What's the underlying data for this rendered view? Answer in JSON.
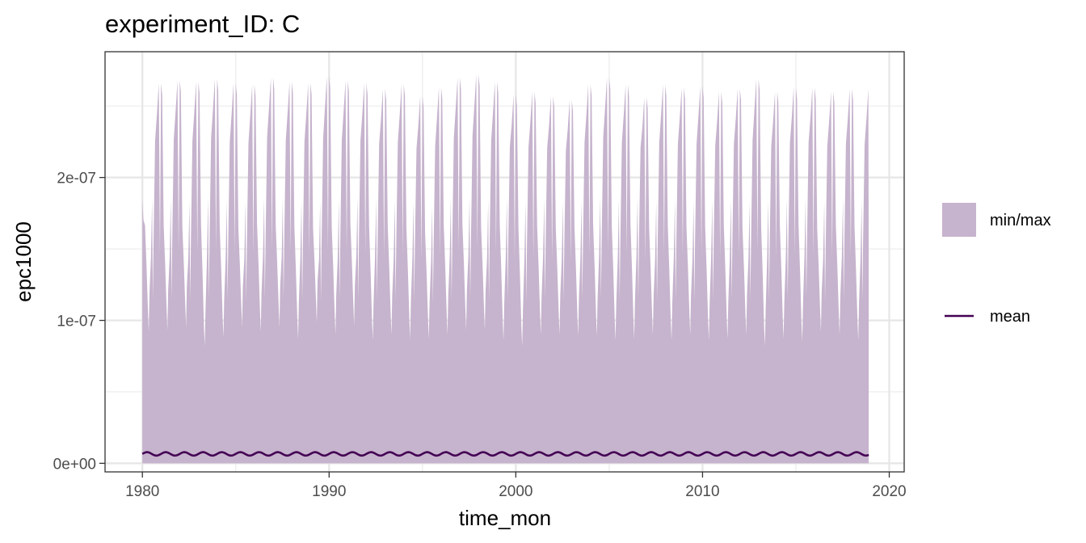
{
  "chart_data": {
    "type": "area",
    "title": "experiment_ID: C",
    "xlabel": "time_mon",
    "ylabel": "epc1000",
    "x_range": [
      1980.0,
      2018.9
    ],
    "xlim": [
      1978.0,
      2020.8
    ],
    "ylim": [
      -6e-09,
      2.88e-07
    ],
    "x_ticks": [
      1980,
      1990,
      2000,
      2010,
      2020
    ],
    "x_tick_labels": [
      "1980",
      "1990",
      "2000",
      "2010",
      "2020"
    ],
    "x_minor_ticks": [
      1985,
      1995,
      2005,
      2015
    ],
    "y_ticks": [
      0,
      1e-07,
      2e-07
    ],
    "y_tick_labels": [
      "0e+00",
      "1e-07",
      "2e-07"
    ],
    "y_minor_ticks": [
      5e-08,
      1.5e-07,
      2.5e-07
    ],
    "grid": true,
    "legend_position": "right",
    "series": [
      {
        "name": "min/max",
        "kind": "ribbon",
        "color": "#c6b3cd",
        "min_value": 0,
        "annual_peak_max": [
          2.65e-07,
          2.66e-07,
          2.68e-07,
          2.67e-07,
          2.69e-07,
          2.66e-07,
          2.65e-07,
          2.7e-07,
          2.67e-07,
          2.66e-07,
          2.71e-07,
          2.68e-07,
          2.66e-07,
          2.62e-07,
          2.65e-07,
          2.57e-07,
          2.63e-07,
          2.7e-07,
          2.72e-07,
          2.67e-07,
          2.58e-07,
          2.6e-07,
          2.57e-07,
          2.54e-07,
          2.65e-07,
          2.7e-07,
          2.65e-07,
          2.56e-07,
          2.65e-07,
          2.63e-07,
          2.64e-07,
          2.6e-07,
          2.62e-07,
          2.69e-07,
          2.6e-07,
          2.63e-07,
          2.63e-07,
          2.6e-07,
          2.62e-07
        ],
        "annual_trough_max": [
          9.2e-08,
          9.3e-08,
          9.5e-08,
          8.2e-08,
          8.8e-08,
          9.5e-08,
          9.2e-08,
          9.5e-08,
          8.7e-08,
          9.8e-08,
          9e-08,
          9.6e-08,
          8.6e-08,
          9e-08,
          8.7e-08,
          8.7e-08,
          9e-08,
          9.3e-08,
          9.3e-08,
          8.6e-08,
          8.2e-08,
          9e-08,
          9e-08,
          8.9e-08,
          8.9e-08,
          8.6e-08,
          8.7e-08,
          9e-08,
          8.6e-08,
          9e-08,
          8.6e-08,
          8.7e-08,
          9e-08,
          8.2e-08,
          8.7e-08,
          8.5e-08,
          9.2e-08,
          9e-08,
          8.6e-08
        ],
        "annual_secondary_max": [
          1.85e-07,
          1.85e-07,
          1.84e-07,
          1.86e-07,
          1.84e-07,
          1.83e-07,
          1.86e-07,
          1.85e-07,
          1.84e-07,
          1.83e-07,
          1.84e-07,
          1.86e-07,
          1.85e-07,
          1.84e-07,
          1.83e-07,
          1.8e-07,
          1.85e-07,
          1.86e-07,
          1.84e-07,
          1.85e-07,
          1.83e-07,
          1.85e-07,
          1.83e-07,
          1.84e-07,
          1.86e-07,
          1.84e-07,
          1.86e-07,
          1.83e-07,
          1.84e-07,
          1.83e-07,
          1.84e-07,
          1.85e-07,
          1.83e-07,
          1.84e-07,
          1.85e-07,
          1.86e-07,
          1.83e-07,
          1.85e-07,
          1.84e-07
        ]
      },
      {
        "name": "mean",
        "kind": "line",
        "color": "#440154",
        "mean_value": 6.6e-09,
        "seasonal_amplitude": 1.2e-09,
        "cycles_per_year": 1
      }
    ],
    "legend": [
      {
        "key": "ribbon",
        "label": "min/max"
      },
      {
        "key": "line",
        "label": "mean"
      }
    ]
  }
}
